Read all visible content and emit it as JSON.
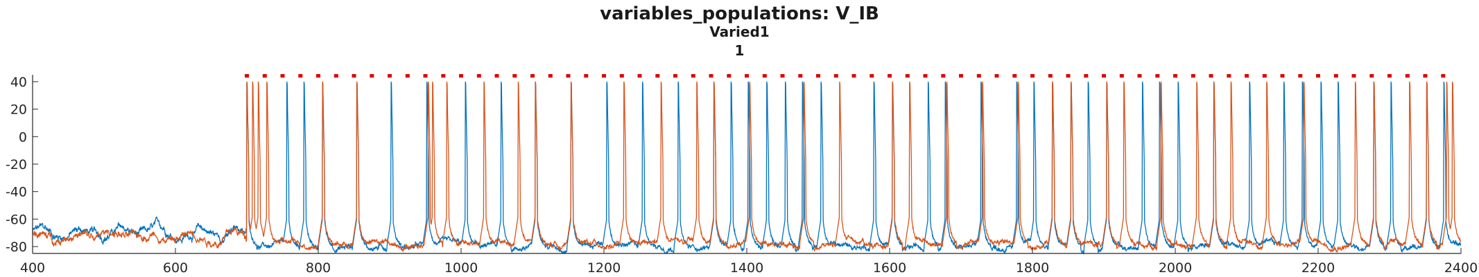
{
  "chart_data": {
    "type": "line",
    "title": "variables_populations: V_IB",
    "subtitle": "Varied1",
    "subtitle2": "1",
    "xlabel": "",
    "ylabel": "",
    "xlim": [
      400,
      2400
    ],
    "ylim": [
      -85,
      45
    ],
    "x_ticks": [
      "400",
      "600",
      "800",
      "1000",
      "1200",
      "1400",
      "1600",
      "1800",
      "2000",
      "2200",
      "2400"
    ],
    "y_ticks": [
      "40",
      "20",
      "0",
      "-20",
      "-40",
      "-60",
      "-80"
    ],
    "grid": false,
    "legend": "none",
    "series": [
      {
        "color": "#0072BD",
        "baseline_pre": -70,
        "baseline_post": -80,
        "onset": 700,
        "spike_peak": 40,
        "spike_times": [
          700,
          756,
          780,
          806,
          854,
          902,
          952,
          1006,
          1056,
          1104,
          1154,
          1204,
          1254,
          1304,
          1354,
          1378,
          1402,
          1428,
          1454,
          1478,
          1504,
          1578,
          1604,
          1654,
          1678,
          1728,
          1778,
          1802,
          1828,
          1854,
          1878,
          1904,
          1954,
          1978,
          2004,
          2054,
          2104,
          2152,
          2178,
          2204,
          2228,
          2278,
          2302,
          2352,
          2376
        ]
      },
      {
        "color": "#D95319",
        "baseline_pre": -72,
        "baseline_post": -78,
        "onset": 700,
        "spike_peak": 40,
        "spike_times": [
          700,
          708,
          716,
          728,
          806,
          854,
          954,
          960,
          980,
          1032,
          1080,
          1104,
          1154,
          1228,
          1280,
          1330,
          1354,
          1404,
          1480,
          1530,
          1604,
          1628,
          1680,
          1730,
          1780,
          1828,
          1854,
          1904,
          1928,
          1980,
          2030,
          2054,
          2078,
          2128,
          2180,
          2252,
          2278,
          2328,
          2352,
          2380,
          2388
        ]
      }
    ],
    "markers": {
      "color": "#E00000",
      "y": 44,
      "x": [
        700,
        725,
        750,
        775,
        800,
        825,
        850,
        875,
        900,
        925,
        950,
        975,
        1000,
        1025,
        1050,
        1075,
        1100,
        1125,
        1150,
        1175,
        1200,
        1225,
        1250,
        1275,
        1300,
        1325,
        1350,
        1375,
        1400,
        1425,
        1450,
        1475,
        1500,
        1525,
        1550,
        1575,
        1600,
        1625,
        1650,
        1675,
        1700,
        1725,
        1750,
        1775,
        1800,
        1825,
        1850,
        1875,
        1900,
        1925,
        1950,
        1975,
        2000,
        2025,
        2050,
        2075,
        2100,
        2125,
        2150,
        2175,
        2200,
        2225,
        2250,
        2275,
        2300,
        2325,
        2350,
        2375
      ]
    }
  }
}
